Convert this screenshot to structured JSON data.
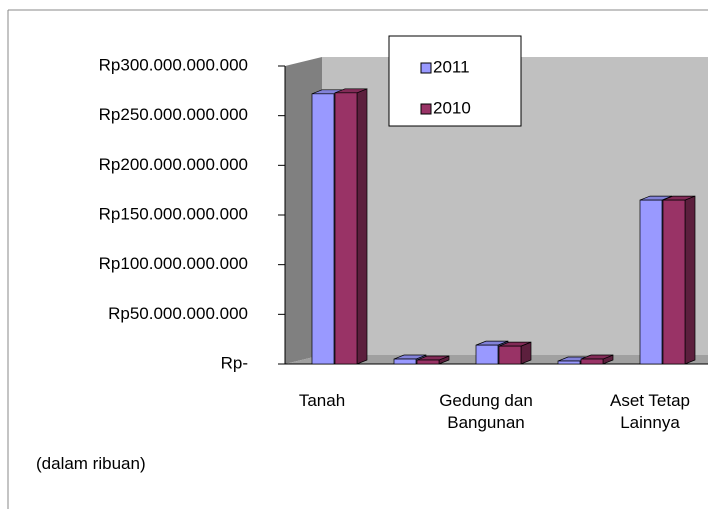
{
  "chart_data": {
    "type": "bar3d",
    "categories": [
      "Tanah",
      null,
      "Gedung dan Bangunan",
      null,
      "Aset Tetap Lainnya"
    ],
    "series": [
      {
        "name": "2011",
        "color": "#9999ff",
        "values": [
          272000000000,
          5000000000,
          19000000000,
          3000000000,
          165000000000
        ]
      },
      {
        "name": "2010",
        "color": "#993366",
        "values": [
          273000000000,
          4000000000,
          18000000000,
          5000000000,
          165000000000
        ]
      }
    ],
    "ylim": [
      0,
      300000000000
    ],
    "yticks": [
      {
        "value": 0,
        "label": "Rp-"
      },
      {
        "value": 50000000000,
        "label": "Rp50.000.000.000"
      },
      {
        "value": 100000000000,
        "label": "Rp100.000.000.000"
      },
      {
        "value": 150000000000,
        "label": "Rp150.000.000.000"
      },
      {
        "value": 200000000000,
        "label": "Rp200.000.000.000"
      },
      {
        "value": 250000000000,
        "label": "Rp250.000.000.000"
      },
      {
        "value": 300000000000,
        "label": "Rp300.000.000.000"
      }
    ],
    "annotation": "(dalam ribuan)",
    "legend": "top"
  }
}
